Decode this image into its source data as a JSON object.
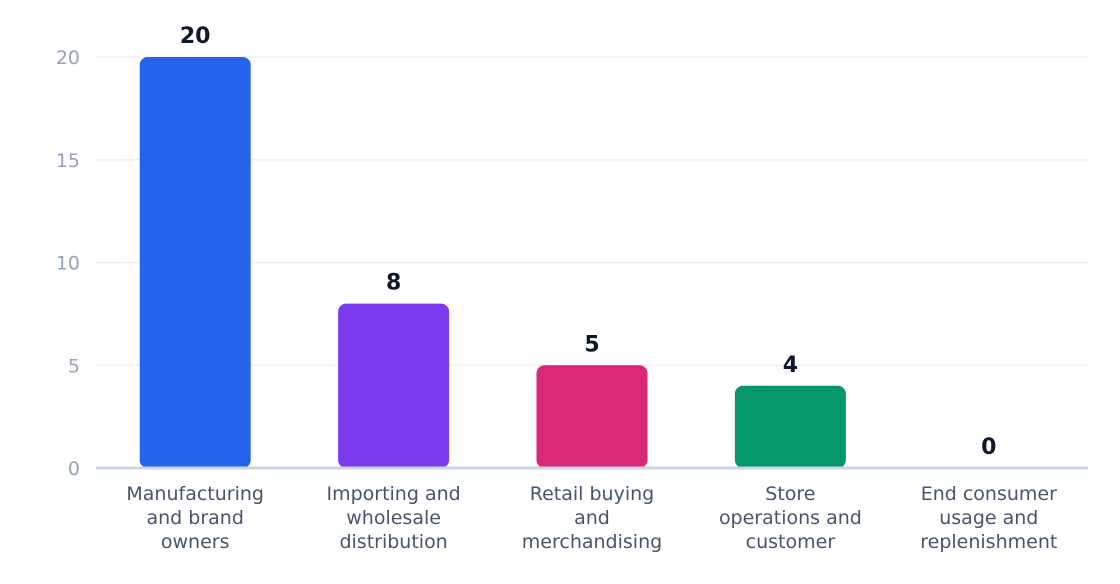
{
  "chart_data": {
    "type": "bar",
    "title": "",
    "xlabel": "",
    "ylabel": "",
    "ylim": [
      0,
      20
    ],
    "yticks": [
      0,
      5,
      10,
      15,
      20
    ],
    "grid": true,
    "categories": [
      [
        "Manufacturing",
        "and brand",
        "owners"
      ],
      [
        "Importing and",
        "wholesale",
        "distribution"
      ],
      [
        "Retail buying",
        "and",
        "merchandising"
      ],
      [
        "Store",
        "operations and",
        "customer"
      ],
      [
        "End consumer",
        "usage and",
        "replenishment"
      ]
    ],
    "values": [
      20,
      8,
      5,
      4,
      0
    ],
    "colors": [
      "#2563eb",
      "#7c3aed",
      "#db2777",
      "#059669",
      "#d97706"
    ]
  }
}
